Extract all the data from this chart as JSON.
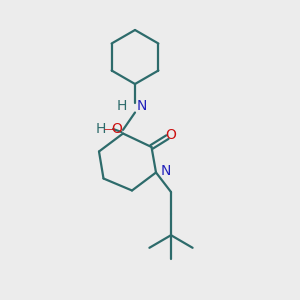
{
  "bg_color": "#ececec",
  "bond_color": "#2d6b6b",
  "n_color": "#2222bb",
  "o_color": "#cc1111",
  "h_color": "#2d6b6b",
  "line_width": 1.6,
  "font_size": 10,
  "fig_size": [
    3.0,
    3.0
  ],
  "dpi": 100,
  "xlim": [
    0,
    10
  ],
  "ylim": [
    0,
    10
  ]
}
